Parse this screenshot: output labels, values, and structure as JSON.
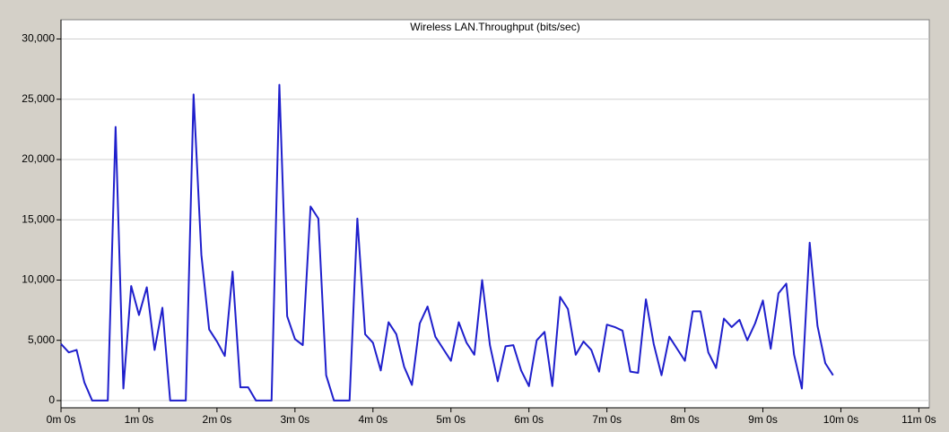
{
  "chart_data": {
    "type": "line",
    "title": "Wireless LAN.Throughput (bits/sec)",
    "x": [
      0,
      6,
      12,
      18,
      24,
      30,
      36,
      42,
      48,
      54,
      60,
      66,
      72,
      78,
      84,
      90,
      96,
      102,
      108,
      114,
      120,
      126,
      132,
      138,
      144,
      150,
      156,
      162,
      168,
      174,
      180,
      186,
      192,
      198,
      204,
      210,
      216,
      222,
      228,
      234,
      240,
      246,
      252,
      258,
      264,
      270,
      276,
      282,
      288,
      294,
      300,
      306,
      312,
      318,
      324,
      330,
      336,
      342,
      348,
      354,
      360,
      366,
      372,
      378,
      384,
      390,
      396,
      402,
      408,
      414,
      420,
      426,
      432,
      438,
      444,
      450,
      456,
      462,
      468,
      474,
      480,
      486,
      492,
      498,
      504,
      510,
      516,
      522,
      528,
      534,
      540,
      546,
      552,
      558,
      564,
      570,
      576,
      582,
      588,
      594
    ],
    "series": [
      {
        "name": "Wireless LAN.Throughput (bits/sec)",
        "color": "#1f1fcc",
        "values": [
          4700,
          4000,
          4200,
          1500,
          0,
          0,
          0,
          22700,
          1000,
          9500,
          7100,
          9400,
          4200,
          7700,
          0,
          0,
          0,
          25400,
          12100,
          5900,
          4900,
          3700,
          10700,
          1100,
          1100,
          0,
          0,
          0,
          26200,
          7000,
          5100,
          4600,
          16100,
          15100,
          2100,
          0,
          0,
          0,
          15100,
          5500,
          4800,
          2500,
          6500,
          5500,
          2800,
          1300,
          6400,
          7800,
          5300,
          4300,
          3300,
          6500,
          4800,
          3800,
          10000,
          4600,
          1600,
          4500,
          4600,
          2500,
          1200,
          5000,
          5700,
          1200,
          8600,
          7600,
          3800,
          4900,
          4200,
          2400,
          6300,
          6100,
          5800,
          2400,
          2300,
          8400,
          4700,
          2100,
          5300,
          4300,
          3300,
          7400,
          7400,
          4000,
          2700,
          6800,
          6100,
          6700,
          5000,
          6400,
          8300,
          4300,
          8900,
          9700,
          3800,
          1000,
          13100,
          6200,
          3100,
          2100
        ]
      }
    ],
    "xlim": [
      0,
      668
    ],
    "ylim": [
      -600,
      31600
    ],
    "xticks": [
      {
        "value": 0,
        "label": "0m 0s"
      },
      {
        "value": 60,
        "label": "1m 0s"
      },
      {
        "value": 120,
        "label": "2m 0s"
      },
      {
        "value": 180,
        "label": "3m 0s"
      },
      {
        "value": 240,
        "label": "4m 0s"
      },
      {
        "value": 300,
        "label": "5m 0s"
      },
      {
        "value": 360,
        "label": "6m 0s"
      },
      {
        "value": 420,
        "label": "7m 0s"
      },
      {
        "value": 480,
        "label": "8m 0s"
      },
      {
        "value": 540,
        "label": "9m 0s"
      },
      {
        "value": 600,
        "label": "10m 0s"
      },
      {
        "value": 660,
        "label": "11m 0s"
      }
    ],
    "yticks": [
      0,
      {
        "value": 5000,
        "label": "5,000"
      },
      {
        "value": 10000,
        "label": "10,000"
      },
      {
        "value": 15000,
        "label": "15,000"
      },
      {
        "value": 20000,
        "label": "20,000"
      },
      {
        "value": 25000,
        "label": "25,000"
      },
      {
        "value": 30000,
        "label": "30,000"
      }
    ],
    "grid": true
  }
}
